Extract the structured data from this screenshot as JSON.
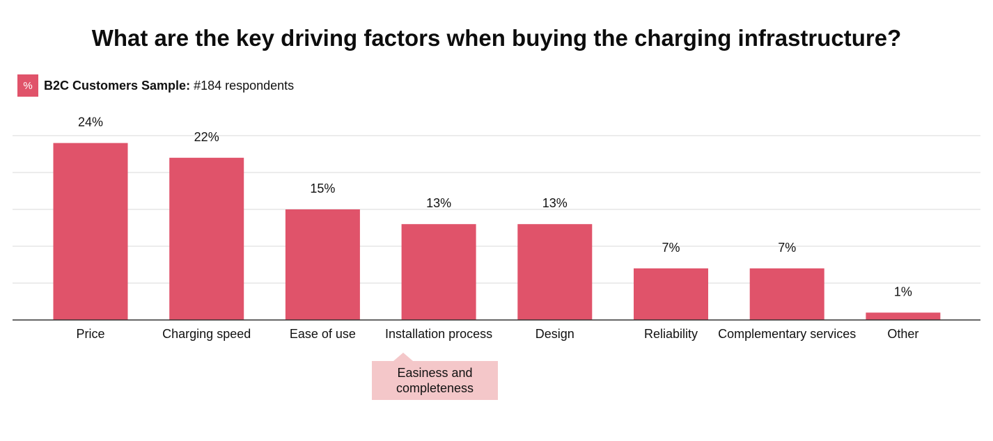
{
  "title": "What are the key driving factors when buying the charging infrastructure?",
  "legend": {
    "symbol": "%",
    "label_bold": "B2C Customers Sample:",
    "label_rest": " #184 respondents"
  },
  "callout": {
    "line1": "Easiness and",
    "line2": "completeness"
  },
  "colors": {
    "bar": "#e0536a",
    "grid": "#d9d9d9",
    "axis": "#333333",
    "callout_bg": "#f4c7c9"
  },
  "chart_data": {
    "type": "bar",
    "categories": [
      "Price",
      "Charging speed",
      "Ease of use",
      "Installation process",
      "Design",
      "Reliability",
      "Complementary services",
      "Other"
    ],
    "values": [
      24,
      22,
      15,
      13,
      13,
      7,
      7,
      1
    ],
    "data_labels": [
      "24%",
      "22%",
      "15%",
      "13%",
      "13%",
      "7%",
      "7%",
      "1%"
    ],
    "ylim": [
      0,
      25
    ],
    "grid": true,
    "legend_position": "top-left"
  }
}
